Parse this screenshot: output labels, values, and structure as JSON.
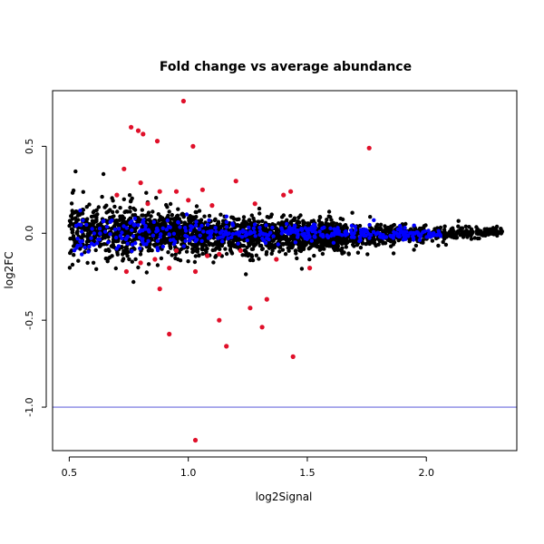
{
  "chart_data": {
    "type": "scatter",
    "title": "Fold change vs average abundance",
    "xlabel": "log2Signal",
    "ylabel": "log2FC",
    "xlim": [
      0.43,
      2.38
    ],
    "ylim": [
      -1.25,
      0.82
    ],
    "x_ticks": [
      0.5,
      1.0,
      1.5,
      2.0
    ],
    "x_tick_labels": [
      "0.5",
      "1.0",
      "1.5",
      "2.0"
    ],
    "y_ticks": [
      -1.0,
      -0.5,
      0.0,
      0.5
    ],
    "y_tick_labels": [
      "-1.0",
      "-0.5",
      "0.0",
      "0.5"
    ],
    "grid": false,
    "legend": "none",
    "hline": {
      "y": -1.0,
      "color": "#6b6bdc"
    },
    "colors": {
      "black_points": "#000000",
      "blue_points": "#0000ff",
      "red_points": "#e0102a",
      "frame": "#000000"
    },
    "series": [
      {
        "color": "#e0102a",
        "points": [
          [
            0.76,
            0.61
          ],
          [
            0.79,
            0.59
          ],
          [
            0.81,
            0.57
          ],
          [
            0.98,
            0.76
          ],
          [
            0.73,
            0.37
          ],
          [
            0.87,
            0.53
          ],
          [
            1.02,
            0.5
          ],
          [
            1.76,
            0.49
          ],
          [
            0.8,
            0.29
          ],
          [
            0.88,
            0.24
          ],
          [
            0.95,
            0.24
          ],
          [
            1.06,
            0.25
          ],
          [
            1.43,
            0.24
          ],
          [
            1.2,
            0.3
          ],
          [
            1.4,
            0.22
          ],
          [
            0.86,
            -0.15
          ],
          [
            0.8,
            -0.17
          ],
          [
            0.92,
            -0.2
          ],
          [
            1.03,
            -0.22
          ],
          [
            1.08,
            -0.13
          ],
          [
            1.13,
            -0.12
          ],
          [
            1.37,
            -0.15
          ],
          [
            1.51,
            -0.2
          ],
          [
            0.88,
            -0.32
          ],
          [
            0.74,
            -0.22
          ],
          [
            1.33,
            -0.38
          ],
          [
            1.26,
            -0.43
          ],
          [
            1.13,
            -0.5
          ],
          [
            1.31,
            -0.54
          ],
          [
            0.92,
            -0.58
          ],
          [
            1.16,
            -0.65
          ],
          [
            1.44,
            -0.71
          ],
          [
            1.03,
            -1.19
          ],
          [
            0.7,
            0.22
          ],
          [
            0.83,
            0.17
          ],
          [
            1.0,
            0.19
          ],
          [
            1.1,
            0.16
          ],
          [
            1.28,
            0.17
          ],
          [
            0.95,
            -0.1
          ],
          [
            1.22,
            -0.1
          ]
        ]
      }
    ]
  }
}
